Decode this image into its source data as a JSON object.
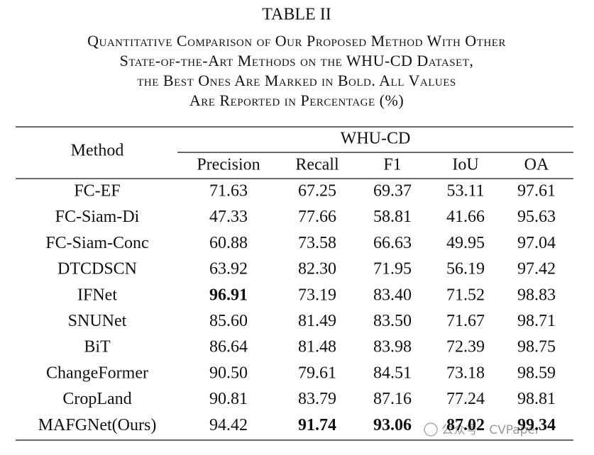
{
  "header": {
    "title": "TABLE II",
    "caption": [
      "Quantitative Comparison of Our Proposed Method With Other",
      "State-of-the-Art Methods on the WHU-CD Dataset,",
      "the Best Ones Are Marked in Bold. All Values",
      "Are Reported in Percentage (%)"
    ]
  },
  "table": {
    "method_header": "Method",
    "group_header": "WHU-CD",
    "columns": [
      "Precision",
      "Recall",
      "F1",
      "IoU",
      "OA"
    ],
    "rows": [
      {
        "cells": [
          "FC-EF",
          "71.63",
          "67.25",
          "69.37",
          "53.11",
          "97.61"
        ],
        "bold": []
      },
      {
        "cells": [
          "FC-Siam-Di",
          "47.33",
          "77.66",
          "58.81",
          "41.66",
          "95.63"
        ],
        "bold": []
      },
      {
        "cells": [
          "FC-Siam-Conc",
          "60.88",
          "73.58",
          "66.63",
          "49.95",
          "97.04"
        ],
        "bold": []
      },
      {
        "cells": [
          "DTCDSCN",
          "63.92",
          "82.30",
          "71.95",
          "56.19",
          "97.42"
        ],
        "bold": []
      },
      {
        "cells": [
          "IFNet",
          "96.91",
          "73.19",
          "83.40",
          "71.52",
          "98.83"
        ],
        "bold": [
          1
        ]
      },
      {
        "cells": [
          "SNUNet",
          "85.60",
          "81.49",
          "83.50",
          "71.67",
          "98.71"
        ],
        "bold": []
      },
      {
        "cells": [
          "BiT",
          "86.64",
          "81.48",
          "83.98",
          "72.39",
          "98.75"
        ],
        "bold": []
      },
      {
        "cells": [
          "ChangeFormer",
          "90.50",
          "79.61",
          "84.51",
          "73.18",
          "98.59"
        ],
        "bold": []
      },
      {
        "cells": [
          "CropLand",
          "90.81",
          "83.79",
          "87.16",
          "77.24",
          "98.81"
        ],
        "bold": []
      },
      {
        "cells": [
          "MAFGNet(Ours)",
          "94.42",
          "91.74",
          "93.06",
          "87.02",
          "99.34"
        ],
        "bold": [
          2,
          3,
          4,
          5
        ]
      }
    ]
  },
  "watermark": "公众号 · CVPaper"
}
